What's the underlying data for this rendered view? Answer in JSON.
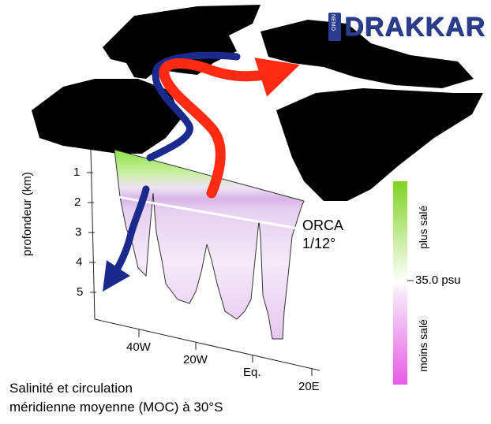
{
  "logo": {
    "text": "DRAKKAR",
    "badge": "NEMO"
  },
  "model": {
    "line1": "ORCA",
    "line2": "1/12°"
  },
  "caption": {
    "line1": "Salinité et circulation",
    "line2": "méridienne moyenne (MOC) à 30°S"
  },
  "y_axis": {
    "label": "profondeur (km)",
    "ticks": [
      "1",
      "2",
      "3",
      "4",
      "5"
    ]
  },
  "x_axis": {
    "ticks": [
      "40W",
      "20W",
      "Eq.",
      "20E"
    ]
  },
  "colorbar": {
    "mid_label": "35.0 psu",
    "upper_label": "plus salé",
    "lower_label": "moins salé",
    "top_color": "#7fd321",
    "bottom_color": "#e85ae8"
  },
  "colors": {
    "land": "#000000",
    "warm_current": "#ff2a12",
    "cold_current": "#1a2a8c"
  }
}
